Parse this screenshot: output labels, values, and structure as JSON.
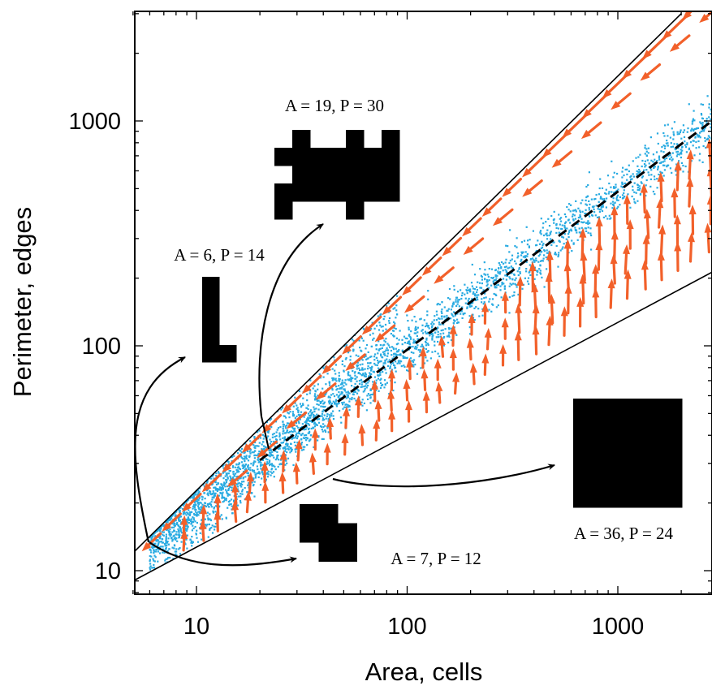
{
  "chart_data": {
    "type": "scatter",
    "xlabel": "Area, cells",
    "ylabel": "Perimeter, edges",
    "xscale": "log",
    "yscale": "log",
    "xlim": [
      5,
      3000
    ],
    "ylim": [
      8,
      3000
    ],
    "xticks": [
      {
        "value": 10,
        "label": "10"
      },
      {
        "value": 100,
        "label": "100"
      },
      {
        "value": 1000,
        "label": "1000"
      }
    ],
    "yticks": [
      {
        "value": 10,
        "label": "10"
      },
      {
        "value": 100,
        "label": "100"
      },
      {
        "value": 1000,
        "label": "1000"
      }
    ],
    "grid": false,
    "bounds": {
      "upper": {
        "from": [
          5,
          12
        ],
        "to": [
          2000,
          3000
        ],
        "color": "#000000"
      },
      "lower": {
        "from": [
          5,
          9
        ],
        "to": [
          3000,
          220
        ],
        "color": "#000000"
      }
    },
    "trend": {
      "style": "dashed",
      "color": "#000000",
      "from": [
        20,
        31
      ],
      "to": [
        3000,
        1050
      ]
    },
    "scatter_color": "#29abe2",
    "arrow_color": "#f2602a",
    "annotations": [
      {
        "text": "A = 6, P = 14",
        "shape": "L",
        "target": [
          5,
          12
        ]
      },
      {
        "text": "A = 19, P = 30",
        "shape": "irregular",
        "target": [
          20,
          33
        ]
      },
      {
        "text": "A = 7, P = 12",
        "shape": "S",
        "target": [
          7,
          9.5
        ]
      },
      {
        "text": "A = 36, P = 24",
        "shape": "square",
        "target": [
          35,
          24
        ]
      }
    ]
  }
}
